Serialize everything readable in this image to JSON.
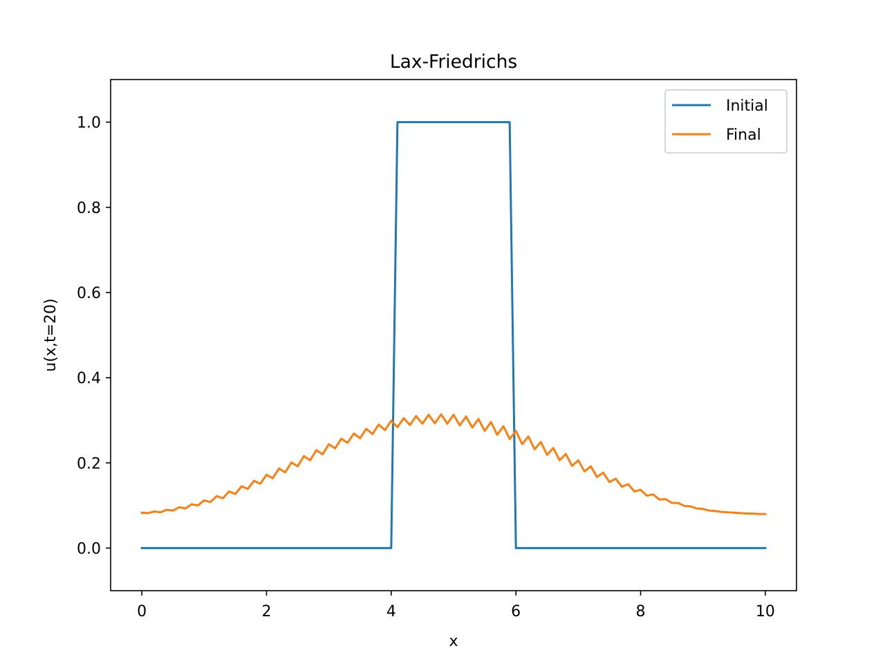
{
  "chart_data": {
    "type": "line",
    "title": "Lax-Friedrichs",
    "xlabel": "x",
    "ylabel": "u(x,t=20)",
    "xlim": [
      -0.5,
      10.5
    ],
    "ylim": [
      -0.1,
      1.1
    ],
    "xticks": [
      0,
      2,
      4,
      6,
      8,
      10
    ],
    "xtick_labels": [
      "0",
      "2",
      "4",
      "6",
      "8",
      "10"
    ],
    "yticks": [
      0.0,
      0.2,
      0.4,
      0.6,
      0.8,
      1.0
    ],
    "ytick_labels": [
      "0.0",
      "0.2",
      "0.4",
      "0.6",
      "0.8",
      "1.0"
    ],
    "grid": false,
    "legend_position": "upper-right",
    "series": [
      {
        "name": "Initial",
        "color": "#1f77b4",
        "x": [
          0,
          4.0,
          4.1,
          5.9,
          6.0,
          10
        ],
        "y": [
          0,
          0,
          1,
          1,
          0,
          0
        ]
      },
      {
        "name": "Final",
        "color": "#ff7f0e",
        "x": [
          0,
          0.1,
          0.2,
          0.3,
          0.4,
          0.5,
          0.6,
          0.7,
          0.8,
          0.9,
          1.0,
          1.1,
          1.2,
          1.3,
          1.4,
          1.5,
          1.6,
          1.7,
          1.8,
          1.9,
          2.0,
          2.1,
          2.2,
          2.3,
          2.4,
          2.5,
          2.6,
          2.7,
          2.8,
          2.9,
          3.0,
          3.1,
          3.2,
          3.3,
          3.4,
          3.5,
          3.6,
          3.7,
          3.8,
          3.9,
          4.0,
          4.1,
          4.2,
          4.3,
          4.4,
          4.5,
          4.6,
          4.7,
          4.8,
          4.9,
          5.0,
          5.1,
          5.2,
          5.3,
          5.4,
          5.5,
          5.6,
          5.7,
          5.8,
          5.9,
          6.0,
          6.1,
          6.2,
          6.3,
          6.4,
          6.5,
          6.6,
          6.7,
          6.8,
          6.9,
          7.0,
          7.1,
          7.2,
          7.3,
          7.4,
          7.5,
          7.6,
          7.7,
          7.8,
          7.9,
          8.0,
          8.1,
          8.2,
          8.3,
          8.4,
          8.5,
          8.6,
          8.7,
          8.8,
          8.9,
          9.0,
          9.1,
          9.2,
          9.3,
          9.4,
          9.5,
          9.6,
          9.7,
          9.8,
          9.9,
          10.0
        ],
        "y": [
          0.083,
          0.082,
          0.086,
          0.084,
          0.09,
          0.088,
          0.096,
          0.093,
          0.103,
          0.1,
          0.112,
          0.108,
          0.122,
          0.117,
          0.133,
          0.127,
          0.145,
          0.139,
          0.158,
          0.151,
          0.172,
          0.164,
          0.187,
          0.178,
          0.201,
          0.192,
          0.216,
          0.206,
          0.23,
          0.22,
          0.244,
          0.234,
          0.257,
          0.247,
          0.269,
          0.258,
          0.28,
          0.268,
          0.29,
          0.277,
          0.299,
          0.284,
          0.305,
          0.289,
          0.31,
          0.292,
          0.313,
          0.293,
          0.314,
          0.292,
          0.313,
          0.288,
          0.309,
          0.283,
          0.303,
          0.275,
          0.296,
          0.266,
          0.286,
          0.256,
          0.275,
          0.244,
          0.262,
          0.232,
          0.249,
          0.219,
          0.235,
          0.206,
          0.221,
          0.193,
          0.206,
          0.18,
          0.192,
          0.167,
          0.177,
          0.155,
          0.163,
          0.144,
          0.15,
          0.133,
          0.137,
          0.123,
          0.126,
          0.114,
          0.115,
          0.106,
          0.106,
          0.099,
          0.098,
          0.093,
          0.092,
          0.088,
          0.087,
          0.085,
          0.084,
          0.083,
          0.082,
          0.081,
          0.081,
          0.08,
          0.08
        ]
      }
    ]
  }
}
